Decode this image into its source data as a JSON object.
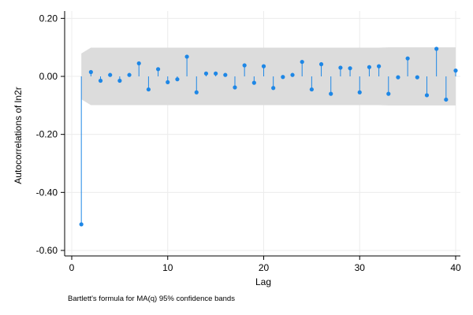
{
  "chart_data": {
    "type": "scatter",
    "title": "",
    "xlabel": "Lag",
    "ylabel": "Autocorrelations of ln2r",
    "note": "Bartlett's formula for MA(q) 95% confidence bands",
    "xlim": [
      0,
      40
    ],
    "ylim": [
      -0.6,
      0.2
    ],
    "x_ticks": [
      0,
      10,
      20,
      30,
      40
    ],
    "x_tick_labels": [
      "0",
      "10",
      "20",
      "30",
      "40"
    ],
    "y_ticks": [
      0.2,
      0,
      -0.2,
      -0.4,
      -0.6
    ],
    "y_tick_labels": [
      "0.20",
      "0.00",
      "-0.20",
      "-0.40",
      "-0.60"
    ],
    "grid": true,
    "series": [
      {
        "lags": [
          1,
          2,
          3,
          4,
          5,
          6,
          7,
          8,
          9,
          10,
          11,
          12,
          13,
          14,
          15,
          16,
          17,
          18,
          19,
          20,
          21,
          22,
          23,
          24,
          25,
          26,
          27,
          28,
          29,
          30,
          31,
          32,
          33,
          34,
          35,
          36,
          37,
          38,
          39,
          40
        ],
        "values": [
          -0.51,
          0.015,
          -0.015,
          0.005,
          -0.015,
          0.005,
          0.045,
          -0.045,
          0.025,
          -0.02,
          -0.01,
          0.068,
          -0.055,
          0.01,
          0.01,
          0.005,
          -0.038,
          0.038,
          -0.022,
          0.035,
          -0.04,
          -0.002,
          0.005,
          0.05,
          -0.045,
          0.042,
          -0.06,
          0.03,
          0.028,
          -0.055,
          0.032,
          0.035,
          -0.06,
          -0.003,
          0.062,
          -0.003,
          -0.065,
          0.095,
          -0.08,
          0.02
        ]
      }
    ],
    "confidence_band": {
      "lags": [
        1,
        2,
        3,
        4,
        5,
        6,
        7,
        8,
        9,
        10,
        11,
        12,
        13,
        14,
        15,
        16,
        17,
        18,
        19,
        20,
        21,
        22,
        23,
        24,
        25,
        26,
        27,
        28,
        29,
        30,
        31,
        32,
        33,
        34,
        35,
        36,
        37,
        38,
        39,
        40
      ],
      "upper": [
        0.079,
        0.099,
        0.099,
        0.099,
        0.099,
        0.099,
        0.099,
        0.099,
        0.099,
        0.099,
        0.099,
        0.099,
        0.099,
        0.099,
        0.099,
        0.099,
        0.099,
        0.099,
        0.099,
        0.099,
        0.099,
        0.099,
        0.099,
        0.099,
        0.099,
        0.099,
        0.099,
        0.099,
        0.099,
        0.099,
        0.099,
        0.099,
        0.1,
        0.1,
        0.1,
        0.1,
        0.1,
        0.1,
        0.1,
        0.1
      ],
      "lower": [
        -0.079,
        -0.099,
        -0.099,
        -0.099,
        -0.099,
        -0.099,
        -0.099,
        -0.099,
        -0.099,
        -0.099,
        -0.099,
        -0.099,
        -0.099,
        -0.099,
        -0.099,
        -0.099,
        -0.099,
        -0.099,
        -0.099,
        -0.099,
        -0.099,
        -0.099,
        -0.099,
        -0.099,
        -0.099,
        -0.099,
        -0.099,
        -0.099,
        -0.099,
        -0.099,
        -0.099,
        -0.099,
        -0.1,
        -0.1,
        -0.1,
        -0.1,
        -0.1,
        -0.1,
        -0.1,
        -0.1
      ]
    },
    "colors": {
      "marker": "#1e87e6",
      "spike": "#1e87e6",
      "band": "#dcdcdc",
      "grid": "#ececec",
      "axis": "#000000"
    }
  }
}
